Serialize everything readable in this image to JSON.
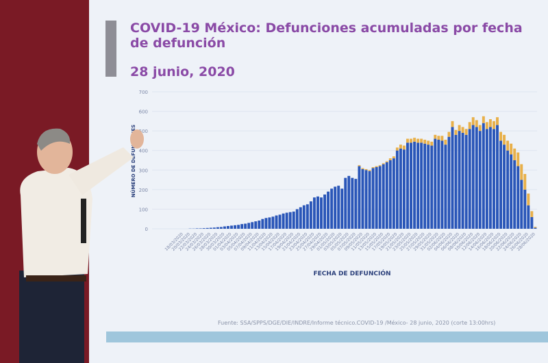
{
  "chart_data": {
    "type": "bar",
    "stacked": true,
    "title": "COVID-19 México: Defunciones acumuladas por fecha de defunción",
    "subtitle": "28  junio, 2020",
    "y_label": "NÚMERO DE DEFUNCIONES",
    "x_label": "FECHA DE DEFUNCIÓN",
    "source": "Fuente: SSA/SPPS/DGE/DIE/INDRE/Informe técnico.COVID-19 /México- 28 junio, 2020 (corte 13:00hrs)",
    "ylim": [
      0,
      700
    ],
    "yticks": [
      0,
      100,
      200,
      300,
      400,
      500,
      600,
      700
    ],
    "categories": [
      "18/03/2020",
      null,
      "20/03/2020",
      null,
      "22/03/2020",
      null,
      "24/03/2020",
      null,
      "26/03/2020",
      null,
      "28/03/2020",
      null,
      "30/03/2020",
      null,
      "01/04/2020",
      null,
      "03/04/2020",
      null,
      "05/04/2020",
      null,
      "07/04/2020",
      null,
      "09/04/2020",
      null,
      "11/04/2020",
      null,
      "13/04/2020",
      null,
      "15/04/2020",
      null,
      "17/04/2020",
      null,
      "19/04/2020",
      null,
      "21/04/2020",
      null,
      "23/04/2020",
      null,
      "25/04/2020",
      null,
      "27/04/2020",
      null,
      "29/04/2020",
      null,
      "01/05/2020",
      null,
      "03/05/2020",
      null,
      "05/05/2020",
      null,
      "07/05/2020",
      null,
      "09/05/2020",
      null,
      "11/05/2020",
      null,
      "13/05/2020",
      null,
      "15/05/2020",
      null,
      "17/05/2020",
      null,
      "19/05/2020",
      null,
      "21/05/2020",
      null,
      "23/05/2020",
      null,
      "25/05/2020",
      null,
      "27/05/2020",
      null,
      "29/05/2020",
      null,
      "31/05/2020",
      null,
      "02/06/2020",
      null,
      "04/06/2020",
      null,
      "06/06/2020",
      null,
      "08/06/2020",
      null,
      "10/06/2020",
      null,
      "12/06/2020",
      null,
      "14/06/2020",
      null,
      "16/06/2020",
      null,
      "18/06/2020",
      null,
      "20/06/2020",
      null,
      "22/06/2020",
      null,
      "24/06/2020",
      null,
      "26/06/2020",
      null,
      "28/06/2020"
    ],
    "series": [
      {
        "color": "#2a56b8",
        "values": [
          0,
          0,
          1,
          1,
          2,
          2,
          3,
          4,
          5,
          6,
          8,
          9,
          12,
          14,
          16,
          18,
          20,
          24,
          26,
          30,
          34,
          38,
          42,
          50,
          55,
          58,
          62,
          68,
          72,
          78,
          82,
          85,
          88,
          100,
          110,
          120,
          125,
          140,
          160,
          165,
          160,
          175,
          190,
          205,
          215,
          220,
          205,
          260,
          270,
          260,
          255,
          320,
          305,
          300,
          295,
          310,
          315,
          320,
          330,
          340,
          350,
          360,
          400,
          410,
          405,
          440,
          440,
          445,
          440,
          440,
          435,
          430,
          425,
          460,
          455,
          450,
          430,
          470,
          520,
          480,
          500,
          490,
          480,
          510,
          530,
          520,
          500,
          540,
          510,
          520,
          510,
          530,
          450,
          430,
          400,
          380,
          350,
          320,
          250,
          200,
          120,
          60,
          5
        ]
      },
      {
        "color": "#e8b04a",
        "values": [
          0,
          0,
          0,
          0,
          0,
          0,
          0,
          0,
          0,
          0,
          0,
          0,
          0,
          0,
          0,
          0,
          0,
          0,
          0,
          0,
          0,
          0,
          0,
          0,
          0,
          0,
          0,
          0,
          0,
          0,
          0,
          0,
          0,
          0,
          0,
          0,
          0,
          0,
          0,
          0,
          0,
          0,
          0,
          0,
          0,
          0,
          0,
          0,
          0,
          0,
          0,
          5,
          5,
          5,
          5,
          5,
          5,
          5,
          5,
          5,
          10,
          10,
          15,
          20,
          20,
          20,
          20,
          20,
          20,
          20,
          20,
          20,
          20,
          20,
          20,
          25,
          25,
          25,
          30,
          25,
          30,
          30,
          30,
          35,
          40,
          35,
          30,
          35,
          35,
          40,
          40,
          40,
          45,
          50,
          50,
          55,
          60,
          70,
          80,
          80,
          60,
          30,
          5
        ]
      }
    ]
  }
}
